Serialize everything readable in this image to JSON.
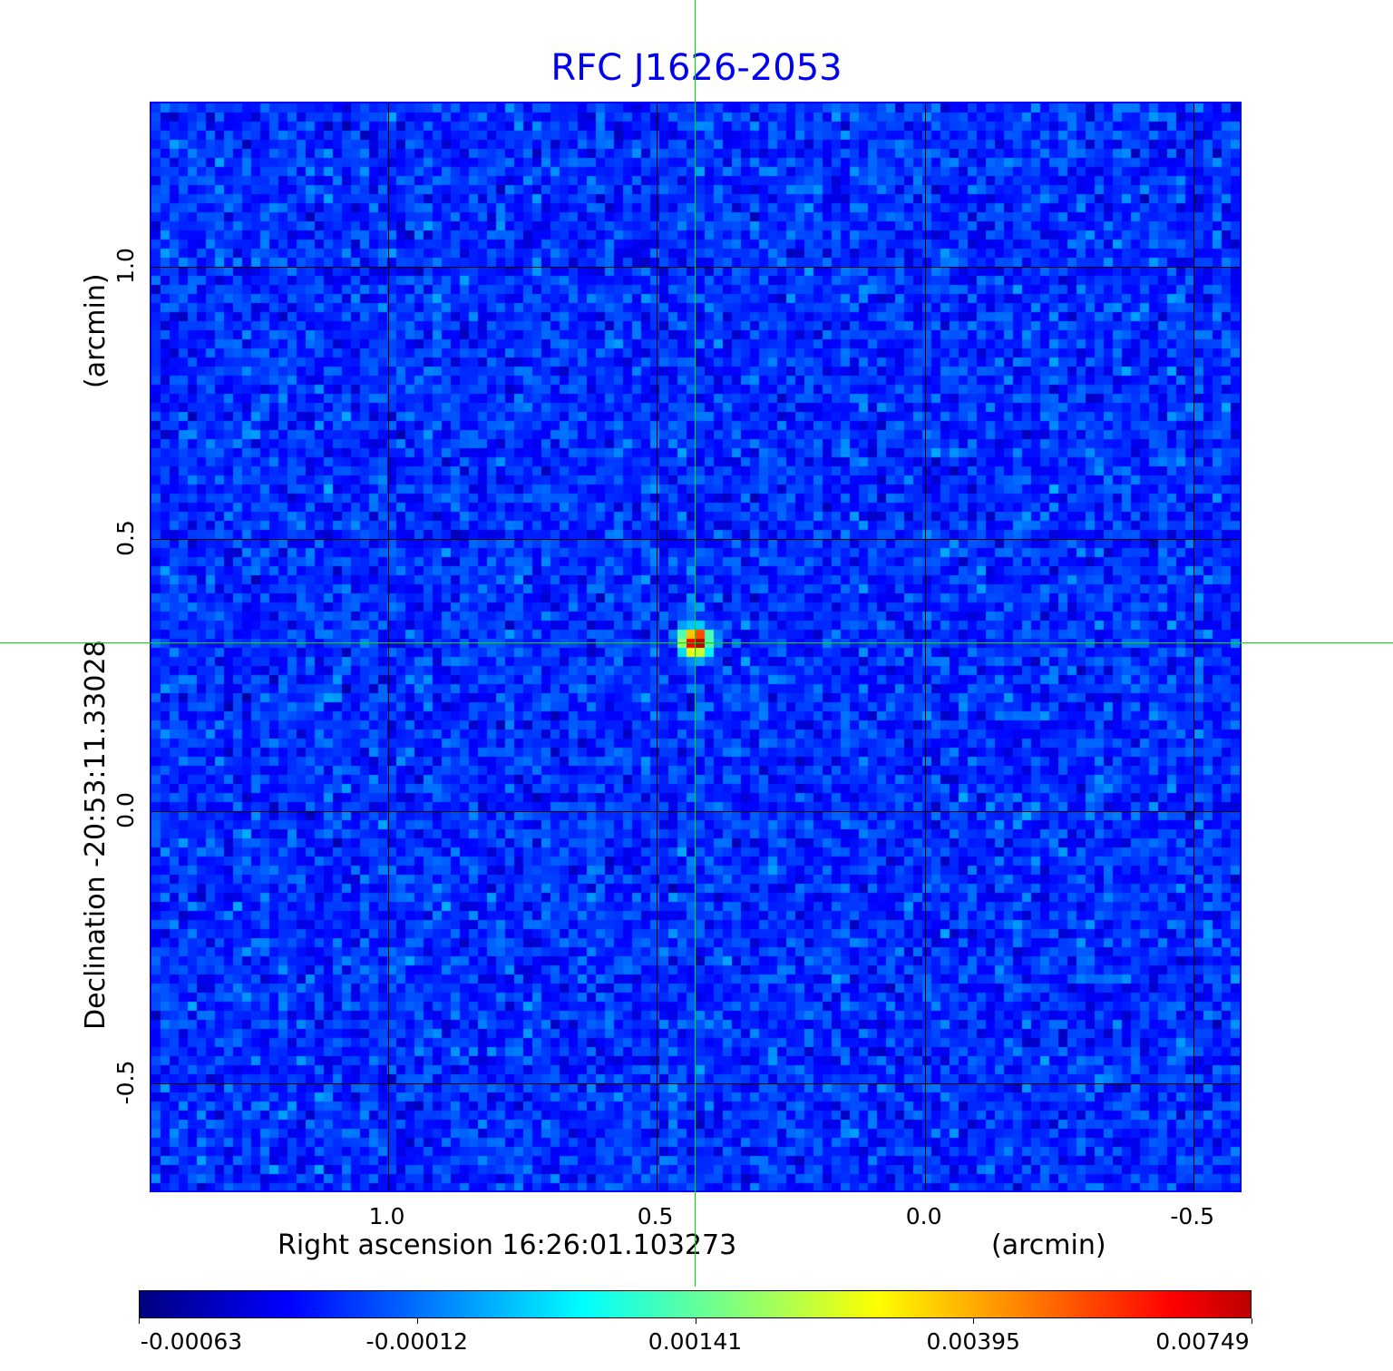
{
  "chart_data": {
    "type": "heatmap",
    "title": "RFC J1626-2053",
    "xlabel": "Right ascension  16:26:01.103273",
    "xunit": "(arcmin)",
    "ylabel": "Declination  -20:53:11.33028",
    "yunit": "(arcmin)",
    "xlim": [
      1.44,
      -0.59
    ],
    "ylim": [
      -0.7,
      1.3
    ],
    "x_ticks": [
      {
        "value": 1.0,
        "label": "1.0"
      },
      {
        "value": 0.5,
        "label": "0.5"
      },
      {
        "value": 0.0,
        "label": "0.0"
      },
      {
        "value": -0.5,
        "label": "-0.5"
      }
    ],
    "y_ticks": [
      {
        "value": 1.0,
        "label": "1.0"
      },
      {
        "value": 0.5,
        "label": "0.5"
      },
      {
        "value": 0.0,
        "label": "0.0"
      },
      {
        "value": -0.5,
        "label": "-0.5"
      }
    ],
    "grid": true,
    "crosshair": {
      "x": 0.426,
      "y": 0.312
    },
    "source_peak": {
      "x": 0.426,
      "y": 0.312,
      "value": 0.00749
    },
    "colormap": "jet",
    "colorbar": {
      "placement": "bottom",
      "ticks": [
        "-0.00063",
        "-0.00012",
        "0.00141",
        "0.00395",
        "0.00749"
      ],
      "min": -0.00063,
      "max": 0.00749
    }
  },
  "colors": {
    "title": "#0000ee",
    "frame": "#0000ff",
    "crosshair": "#00dd00",
    "grid": "#000000"
  }
}
